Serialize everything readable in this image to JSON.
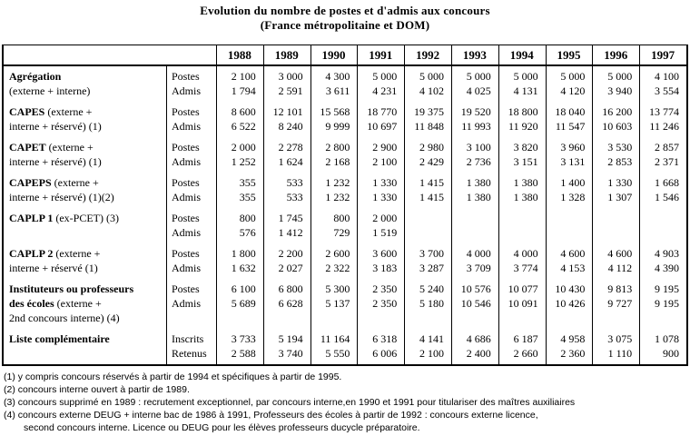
{
  "title": {
    "line1": "Evolution du nombre de postes et d'admis aux concours",
    "line2": "(France métropolitaine et DOM)"
  },
  "table": {
    "years": [
      "1988",
      "1989",
      "1990",
      "1991",
      "1992",
      "1993",
      "1994",
      "1995",
      "1996",
      "1997"
    ],
    "groups": [
      {
        "label_lines": [
          {
            "b": "Agrégation",
            "r": ""
          },
          {
            "b": "",
            "r": "(externe + interne)"
          }
        ],
        "rows": [
          {
            "label": "Postes",
            "values": [
              "2 100",
              "3 000",
              "4 300",
              "5 000",
              "5 000",
              "5 000",
              "5 000",
              "5 000",
              "5 000",
              "4 100"
            ]
          },
          {
            "label": "Admis",
            "values": [
              "1 794",
              "2 591",
              "3 611",
              "4 231",
              "4 102",
              "4 025",
              "4 131",
              "4 120",
              "3 940",
              "3 554"
            ]
          }
        ]
      },
      {
        "label_lines": [
          {
            "b": "CAPES",
            "r": " (externe +"
          },
          {
            "b": "",
            "r": "interne + réservé) (1)"
          }
        ],
        "rows": [
          {
            "label": "Postes",
            "values": [
              "8 600",
              "12 101",
              "15 568",
              "18 770",
              "19 375",
              "19 520",
              "18 800",
              "18 040",
              "16 200",
              "13 774"
            ]
          },
          {
            "label": "Admis",
            "values": [
              "6 522",
              "8 240",
              "9 999",
              "10 697",
              "11 848",
              "11 993",
              "11 920",
              "11 547",
              "10 603",
              "11 246"
            ]
          }
        ]
      },
      {
        "label_lines": [
          {
            "b": "CAPET",
            "r": " (externe +"
          },
          {
            "b": "",
            "r": "interne + réservé) (1)"
          }
        ],
        "rows": [
          {
            "label": "Postes",
            "values": [
              "2 000",
              "2 278",
              "2 800",
              "2 900",
              "2 980",
              "3 100",
              "3 820",
              "3 960",
              "3 530",
              "2 857"
            ]
          },
          {
            "label": "Admis",
            "values": [
              "1 252",
              "1 624",
              "2 168",
              "2 100",
              "2 429",
              "2 736",
              "3 151",
              "3 131",
              "2 853",
              "2 371"
            ]
          }
        ]
      },
      {
        "label_lines": [
          {
            "b": "CAPEPS",
            "r": " (externe +"
          },
          {
            "b": "",
            "r": "interne + réservé) (1)(2)"
          }
        ],
        "rows": [
          {
            "label": "Postes",
            "values": [
              "355",
              "533",
              "1 232",
              "1 330",
              "1 415",
              "1 380",
              "1 380",
              "1 400",
              "1 330",
              "1 668"
            ]
          },
          {
            "label": "Admis",
            "values": [
              "355",
              "533",
              "1 232",
              "1 330",
              "1 415",
              "1 380",
              "1 380",
              "1 328",
              "1 307",
              "1 546"
            ]
          }
        ]
      },
      {
        "label_lines": [
          {
            "b": "CAPLP 1",
            "r": " (ex-PCET) (3)"
          }
        ],
        "rows": [
          {
            "label": "Postes",
            "values": [
              "800",
              "1 745",
              "800",
              "2 000",
              "",
              "",
              "",
              "",
              "",
              ""
            ]
          },
          {
            "label": "Admis",
            "values": [
              "576",
              "1 412",
              "729",
              "1 519",
              "",
              "",
              "",
              "",
              "",
              ""
            ]
          }
        ]
      },
      {
        "label_lines": [
          {
            "b": "CAPLP 2",
            "r": " (externe +"
          },
          {
            "b": "",
            "r": "interne + réservé (1)"
          }
        ],
        "rows": [
          {
            "label": "Postes",
            "values": [
              "1 800",
              "2 200",
              "2 600",
              "3 600",
              "3 700",
              "4 000",
              "4 000",
              "4 600",
              "4 600",
              "4 903"
            ]
          },
          {
            "label": "Admis",
            "values": [
              "1 632",
              "2 027",
              "2 322",
              "3 183",
              "3 287",
              "3 709",
              "3 774",
              "4 153",
              "4 112",
              "4 390"
            ]
          }
        ]
      },
      {
        "label_lines": [
          {
            "b": "Instituteurs ou professeurs",
            "r": ""
          },
          {
            "b": "des écoles",
            "r": " (externe +"
          },
          {
            "b": "",
            "r": "2nd concours interne) (4)"
          }
        ],
        "rows": [
          {
            "label": "Postes",
            "values": [
              "6 100",
              "6 800",
              "5 300",
              "2 350",
              "5 240",
              "10 576",
              "10 077",
              "10 430",
              "9 813",
              "9 195"
            ]
          },
          {
            "label": "Admis",
            "values": [
              "5 689",
              "6 628",
              "5 137",
              "2 350",
              "5 180",
              "10 546",
              "10 091",
              "10 426",
              "9 727",
              "9 195"
            ]
          }
        ]
      },
      {
        "label_lines": [
          {
            "b": "Liste complémentaire",
            "r": ""
          }
        ],
        "rows": [
          {
            "label": "Inscrits",
            "values": [
              "3 733",
              "5 194",
              "11 164",
              "6 318",
              "4 141",
              "4 686",
              "6 187",
              "4 958",
              "3 075",
              "1 078"
            ]
          },
          {
            "label": "Retenus",
            "values": [
              "2 588",
              "3 740",
              "5 550",
              "6 006",
              "2 100",
              "2 400",
              "2 660",
              "2 360",
              "1 110",
              "900"
            ]
          }
        ]
      }
    ]
  },
  "footnotes": [
    {
      "text": "(1) y compris concours réservés à partir de 1994 et spécifiques à partir de 1995.",
      "indent": false
    },
    {
      "text": "(2) concours interne ouvert à partir de 1989.",
      "indent": false
    },
    {
      "text": "(3) concours supprimé en 1989 : recrutement exceptionnel, par concours interne,en 1990 et 1991 pour titulariser des maîtres auxiliaires",
      "indent": false
    },
    {
      "text": "(4) concours externe DEUG + interne bac de 1986 à 1991, Professeurs des écoles à partir de 1992 : concours externe licence,",
      "indent": false
    },
    {
      "text": "second concours interne. Licence ou DEUG pour les élèves professeurs ducycle préparatoire.",
      "indent": true
    }
  ]
}
